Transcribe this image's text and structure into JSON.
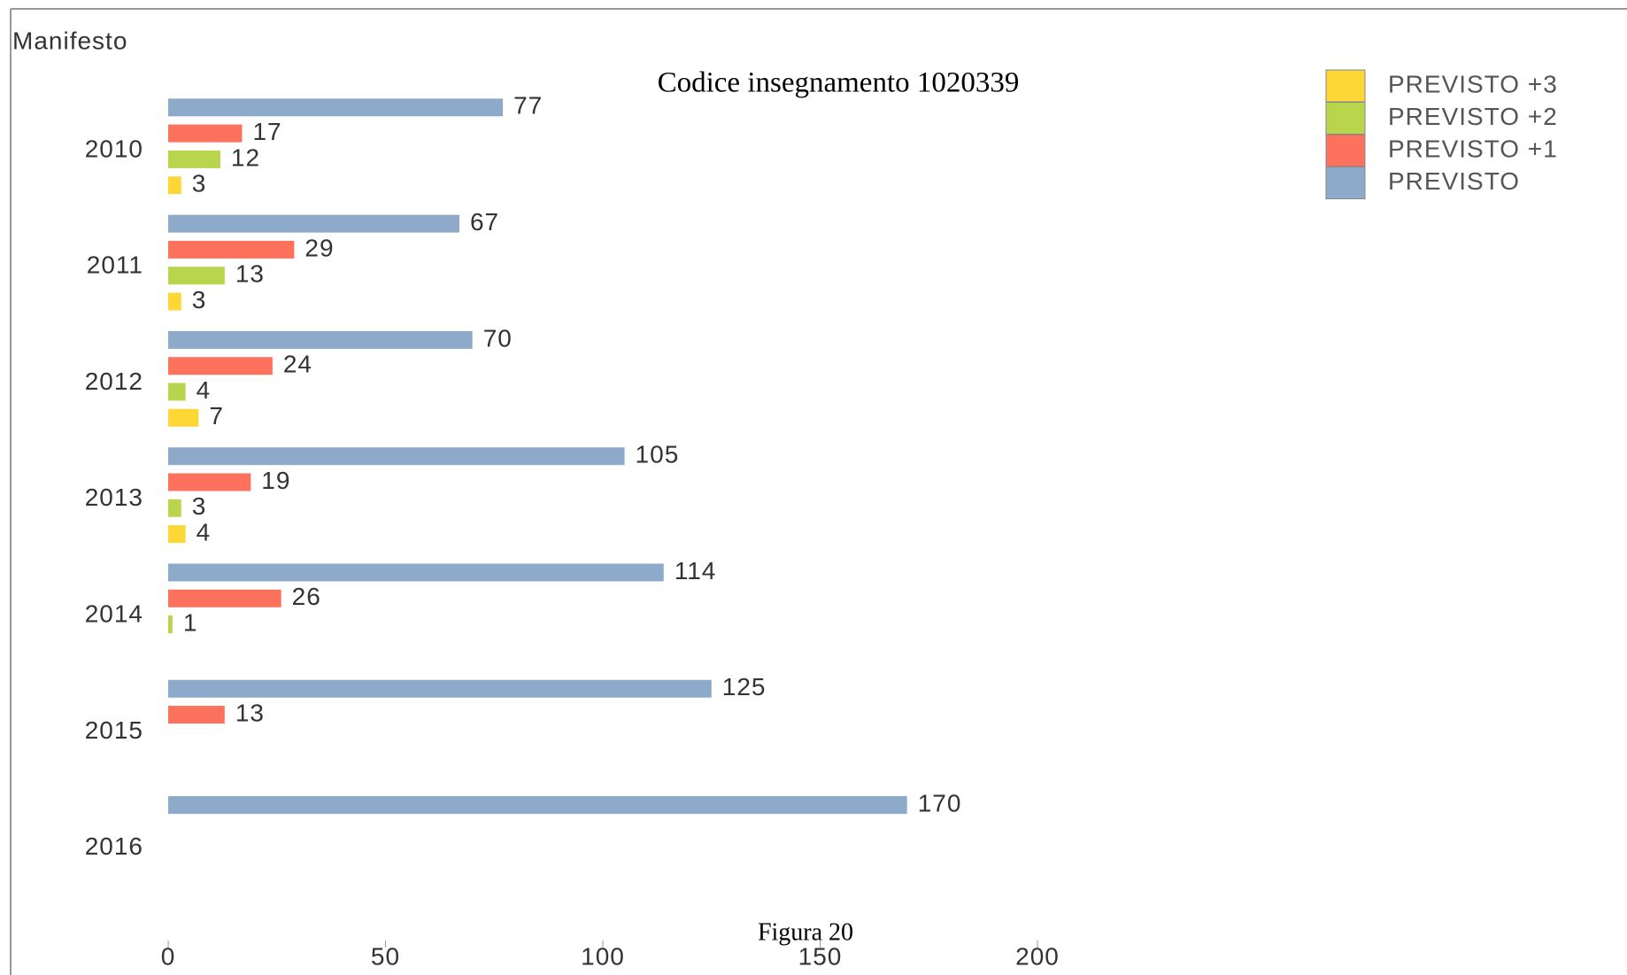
{
  "chart_data": {
    "type": "barh",
    "title": "Codice insegnamento 1020339",
    "y_label": "Manifesto",
    "caption": "Figura 20",
    "categories": [
      "2010",
      "2011",
      "2012",
      "2013",
      "2014",
      "2015",
      "2016"
    ],
    "series": [
      {
        "name": "PREVISTO",
        "color": "#8eaacb",
        "values": [
          77,
          67,
          70,
          105,
          114,
          125,
          170
        ]
      },
      {
        "name": "PREVISTO +1",
        "color": "#fd725d",
        "values": [
          17,
          29,
          24,
          19,
          26,
          13,
          null
        ]
      },
      {
        "name": "PREVISTO +2",
        "color": "#b9d54e",
        "values": [
          12,
          13,
          4,
          3,
          1,
          null,
          null
        ]
      },
      {
        "name": "PREVISTO +3",
        "color": "#fdd735",
        "values": [
          3,
          3,
          7,
          4,
          null,
          null,
          null
        ]
      }
    ],
    "xlim": [
      0,
      200
    ],
    "xticks": [
      0,
      50,
      100,
      150,
      200
    ],
    "legend": "upper right"
  }
}
